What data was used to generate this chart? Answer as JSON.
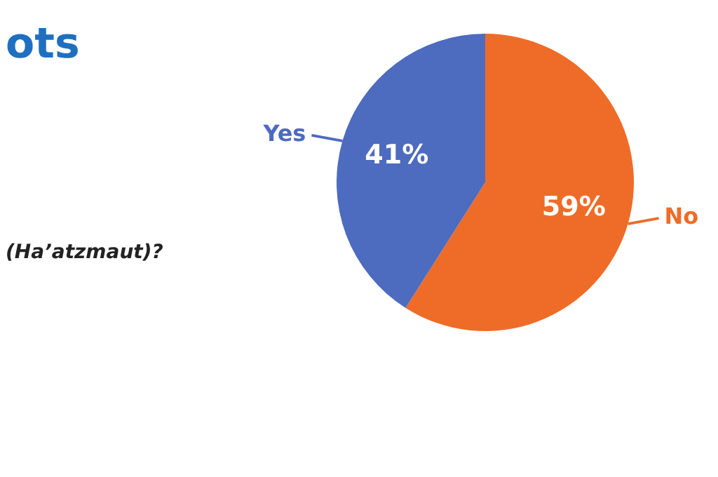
{
  "chart_data": {
    "type": "pie",
    "title": "ots",
    "subtitle": "(Ha’atzmaut)?",
    "categories": [
      "No",
      "Yes"
    ],
    "values": [
      59,
      41
    ],
    "colors": [
      "#ee6c28",
      "#4d6bbf"
    ],
    "value_labels": [
      "59%",
      "41%"
    ],
    "legend": false
  }
}
